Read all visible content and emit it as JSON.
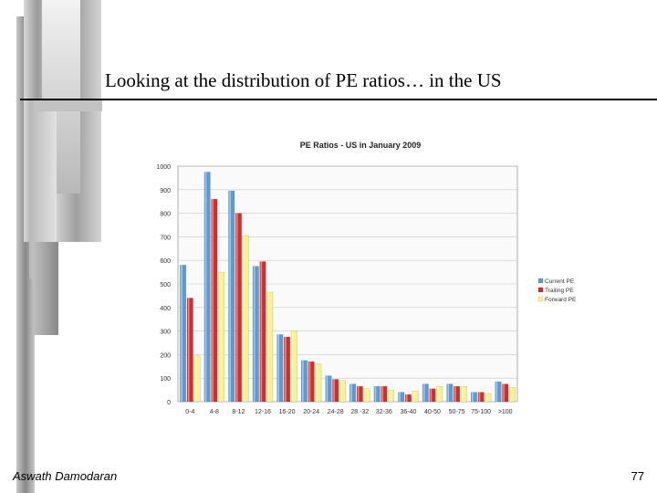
{
  "slide": {
    "title": "Looking at the distribution of PE ratios… in the US",
    "author": "Aswath Damodaran",
    "page_number": "77"
  },
  "colors": {
    "current": "#5b9bd5",
    "trailing": "#d42b2b",
    "forward": "#f8f38a",
    "decor_gray": "#b0b0b0"
  },
  "chart_data": {
    "type": "bar",
    "title": "PE Ratios - US in January 2009",
    "categories": [
      "0-4",
      "4-8",
      "8-12",
      "12-16",
      "16-20",
      "20-24",
      "24-28",
      "28 -32",
      "32-36",
      "36-40",
      "40-50",
      "50-75",
      "75-100",
      ">100"
    ],
    "series": [
      {
        "name": "Current PE",
        "values": [
          580,
          975,
          895,
          575,
          285,
          175,
          110,
          75,
          65,
          40,
          75,
          75,
          40,
          85
        ]
      },
      {
        "name": "Trailing PE",
        "values": [
          440,
          860,
          800,
          595,
          275,
          170,
          95,
          65,
          65,
          30,
          55,
          65,
          40,
          75
        ]
      },
      {
        "name": "Forward PE",
        "values": [
          195,
          550,
          705,
          465,
          300,
          160,
          90,
          55,
          50,
          45,
          65,
          65,
          35,
          60
        ]
      }
    ],
    "ylim": [
      0,
      1000
    ],
    "yticks": [
      0,
      100,
      200,
      300,
      400,
      500,
      600,
      700,
      800,
      900,
      1000
    ],
    "grid": true,
    "legend": "right"
  }
}
